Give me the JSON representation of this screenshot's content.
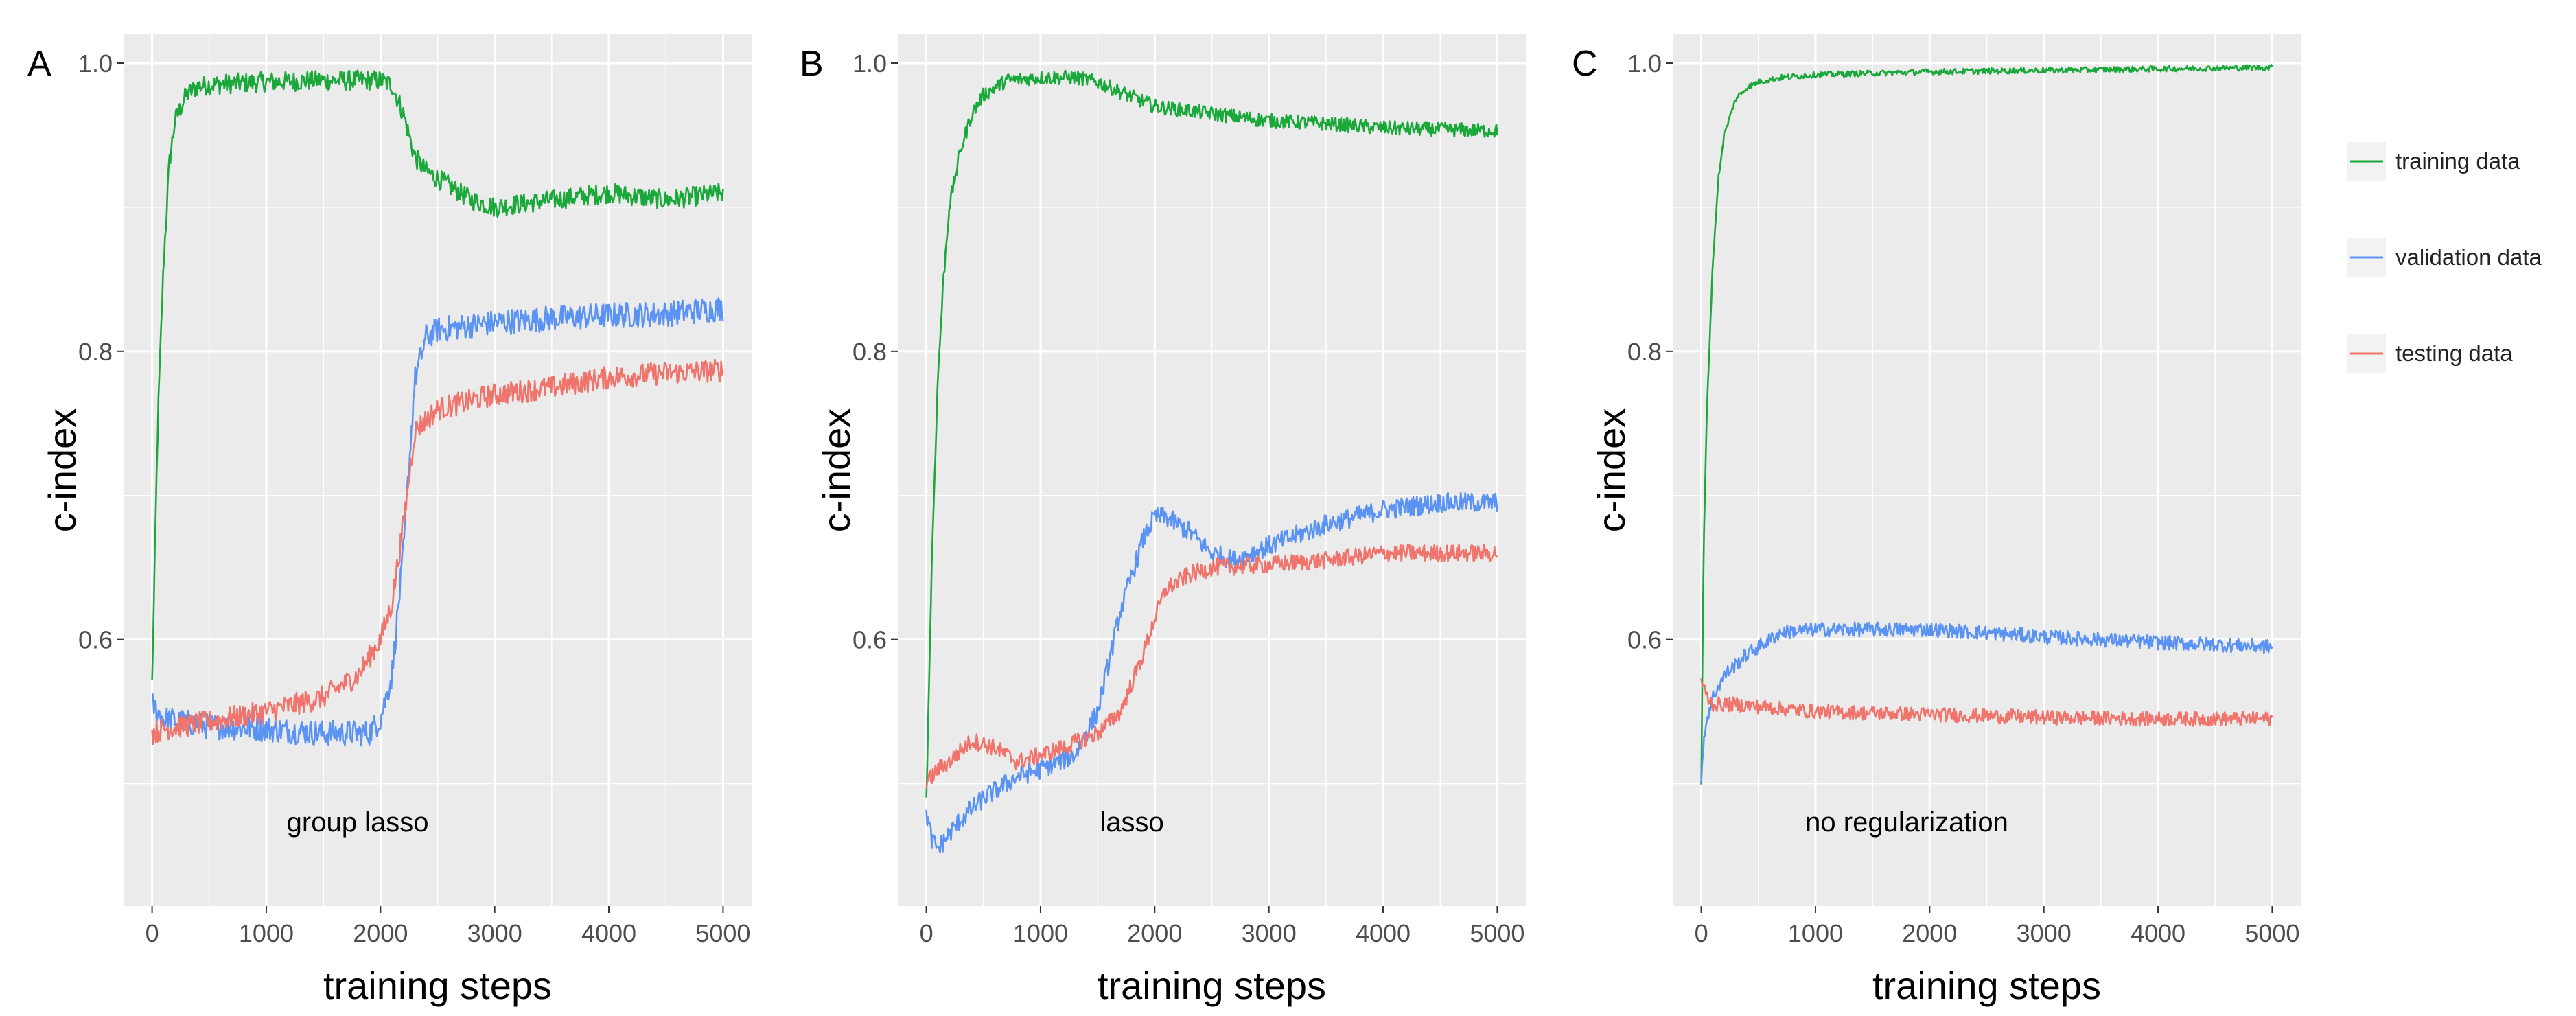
{
  "colors": {
    "training": "#1aa83a",
    "validation": "#5b93f5",
    "testing": "#f0746b",
    "panel_bg": "#ebebeb",
    "grid": "#ffffff",
    "tick_text": "#4d4d4d"
  },
  "legend": {
    "items": [
      {
        "label": "training data",
        "series": "training"
      },
      {
        "label": "validation data",
        "series": "validation"
      },
      {
        "label": "testing data",
        "series": "testing"
      }
    ]
  },
  "chart_data": [
    {
      "type": "line",
      "panel_label": "A",
      "annotation": "group lasso",
      "xlabel": "training steps",
      "ylabel": "c-index",
      "xlim": [
        -250,
        5250
      ],
      "ylim": [
        0.415,
        1.02
      ],
      "xticks": [
        0,
        1000,
        2000,
        3000,
        4000,
        5000
      ],
      "xtick_labels": [
        "0",
        "1000",
        "2000",
        "3000",
        "4000",
        "5000"
      ],
      "yticks": [
        0.6,
        0.8,
        1.0
      ],
      "ytick_labels": [
        "0.6",
        "0.8",
        "1.0"
      ],
      "series": [
        {
          "name": "training data",
          "key": "training",
          "noise": 0.007,
          "x": [
            0,
            50,
            100,
            150,
            200,
            300,
            400,
            500,
            1000,
            1500,
            2000,
            2100,
            2200,
            2300,
            2400,
            2600,
            2800,
            3000,
            3500,
            4000,
            4500,
            5000
          ],
          "y": [
            0.57,
            0.75,
            0.86,
            0.93,
            0.96,
            0.978,
            0.984,
            0.985,
            0.987,
            0.988,
            0.988,
            0.985,
            0.965,
            0.935,
            0.925,
            0.915,
            0.905,
            0.9,
            0.905,
            0.91,
            0.905,
            0.91
          ]
        },
        {
          "name": "validation data",
          "key": "validation",
          "noise": 0.009,
          "x": [
            0,
            100,
            500,
            1000,
            1500,
            1900,
            2000,
            2100,
            2200,
            2300,
            2400,
            2500,
            3000,
            3500,
            4000,
            4500,
            5000
          ],
          "y": [
            0.555,
            0.545,
            0.54,
            0.538,
            0.535,
            0.535,
            0.545,
            0.575,
            0.66,
            0.78,
            0.81,
            0.815,
            0.82,
            0.823,
            0.825,
            0.826,
            0.83
          ]
        },
        {
          "name": "testing data",
          "key": "testing",
          "noise": 0.008,
          "x": [
            0,
            100,
            500,
            1000,
            1500,
            1800,
            2000,
            2100,
            2200,
            2300,
            2500,
            3000,
            3500,
            4000,
            4500,
            5000
          ],
          "y": [
            0.535,
            0.538,
            0.543,
            0.55,
            0.56,
            0.575,
            0.6,
            0.625,
            0.68,
            0.745,
            0.76,
            0.77,
            0.775,
            0.782,
            0.785,
            0.787
          ]
        }
      ]
    },
    {
      "type": "line",
      "panel_label": "B",
      "annotation": "lasso",
      "xlabel": "training steps",
      "ylabel": "c-index",
      "xlim": [
        -250,
        5250
      ],
      "ylim": [
        0.415,
        1.02
      ],
      "xticks": [
        0,
        1000,
        2000,
        3000,
        4000,
        5000
      ],
      "xtick_labels": [
        "0",
        "1000",
        "2000",
        "3000",
        "4000",
        "5000"
      ],
      "yticks": [
        0.6,
        0.8,
        1.0
      ],
      "ytick_labels": [
        "0.6",
        "0.8",
        "1.0"
      ],
      "series": [
        {
          "name": "training data",
          "key": "training",
          "noise": 0.005,
          "x": [
            0,
            50,
            100,
            150,
            200,
            300,
            400,
            500,
            700,
            1000,
            1300,
            1500,
            1700,
            2000,
            2500,
            3000,
            3500,
            4000,
            4500,
            5000
          ],
          "y": [
            0.49,
            0.66,
            0.78,
            0.85,
            0.9,
            0.94,
            0.965,
            0.978,
            0.988,
            0.99,
            0.99,
            0.987,
            0.98,
            0.97,
            0.965,
            0.96,
            0.958,
            0.955,
            0.954,
            0.953
          ]
        },
        {
          "name": "validation data",
          "key": "validation",
          "noise": 0.007,
          "x": [
            0,
            50,
            100,
            300,
            500,
            800,
            1000,
            1300,
            1500,
            1700,
            1900,
            2000,
            2100,
            2300,
            2500,
            2700,
            3000,
            3500,
            4000,
            4500,
            5000
          ],
          "y": [
            0.48,
            0.46,
            0.455,
            0.475,
            0.49,
            0.505,
            0.51,
            0.52,
            0.55,
            0.62,
            0.67,
            0.685,
            0.685,
            0.675,
            0.66,
            0.655,
            0.665,
            0.68,
            0.69,
            0.695,
            0.695
          ]
        },
        {
          "name": "testing data",
          "key": "testing",
          "noise": 0.006,
          "x": [
            0,
            100,
            200,
            400,
            600,
            800,
            1000,
            1200,
            1500,
            1700,
            1900,
            2000,
            2100,
            2300,
            2500,
            3000,
            3500,
            4000,
            4500,
            5000
          ],
          "y": [
            0.5,
            0.51,
            0.515,
            0.53,
            0.525,
            0.515,
            0.52,
            0.525,
            0.535,
            0.55,
            0.59,
            0.615,
            0.635,
            0.645,
            0.65,
            0.652,
            0.655,
            0.66,
            0.66,
            0.66
          ]
        }
      ]
    },
    {
      "type": "line",
      "panel_label": "C",
      "annotation": "no regularization",
      "xlabel": "training steps",
      "ylabel": "c-index",
      "xlim": [
        -250,
        5250
      ],
      "ylim": [
        0.415,
        1.02
      ],
      "xticks": [
        0,
        1000,
        2000,
        3000,
        4000,
        5000
      ],
      "xtick_labels": [
        "0",
        "1000",
        "2000",
        "3000",
        "4000",
        "5000"
      ],
      "yticks": [
        0.6,
        0.8,
        1.0
      ],
      "ytick_labels": [
        "0.6",
        "0.8",
        "1.0"
      ],
      "series": [
        {
          "name": "training data",
          "key": "training",
          "noise": 0.002,
          "x": [
            0,
            20,
            50,
            100,
            150,
            200,
            300,
            400,
            500,
            700,
            1000,
            2000,
            3000,
            4000,
            5000
          ],
          "y": [
            0.5,
            0.66,
            0.76,
            0.86,
            0.92,
            0.95,
            0.975,
            0.983,
            0.987,
            0.99,
            0.992,
            0.994,
            0.995,
            0.996,
            0.997
          ]
        },
        {
          "name": "validation data",
          "key": "validation",
          "noise": 0.005,
          "x": [
            0,
            20,
            50,
            100,
            200,
            400,
            700,
            1000,
            1500,
            2000,
            3000,
            4000,
            5000
          ],
          "y": [
            0.505,
            0.53,
            0.545,
            0.56,
            0.575,
            0.59,
            0.605,
            0.607,
            0.607,
            0.607,
            0.602,
            0.598,
            0.595
          ]
        },
        {
          "name": "testing data",
          "key": "testing",
          "noise": 0.005,
          "x": [
            0,
            50,
            100,
            300,
            1000,
            2000,
            3000,
            4000,
            5000
          ],
          "y": [
            0.572,
            0.56,
            0.555,
            0.555,
            0.55,
            0.548,
            0.546,
            0.545,
            0.545
          ]
        }
      ]
    }
  ]
}
